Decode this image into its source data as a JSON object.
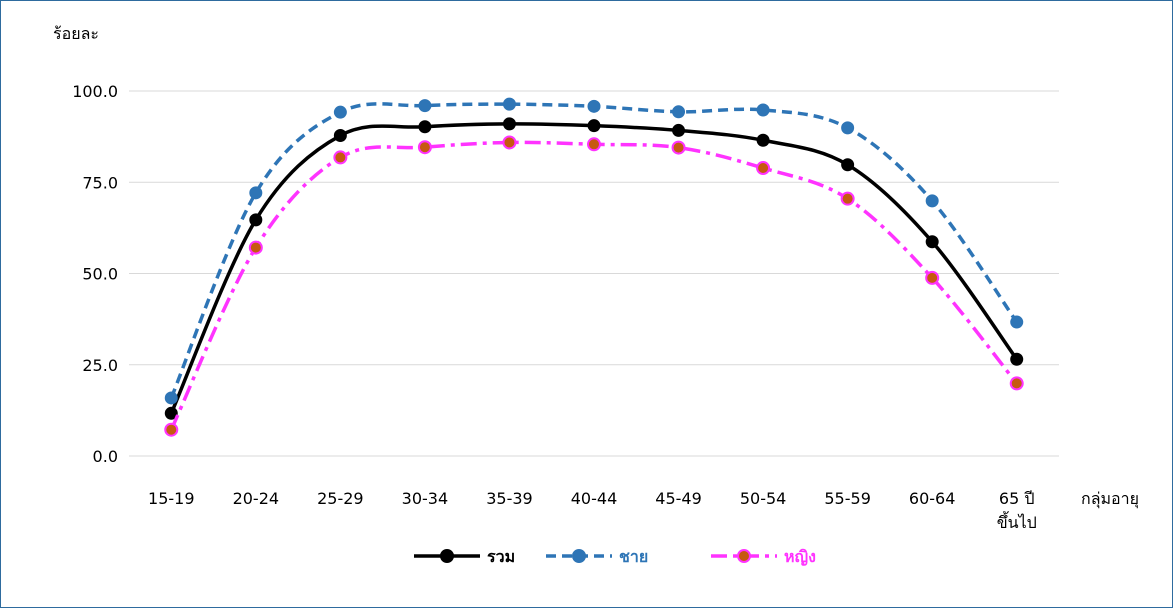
{
  "chart_data": {
    "type": "line",
    "title": "",
    "ylabel": "ร้อยละ",
    "xlabel": "กลุ่มอายุ",
    "ylim": [
      0,
      100
    ],
    "yticks": [
      "0.0",
      "25.0",
      "50.0",
      "75.0",
      "100.0"
    ],
    "grid": true,
    "legend_position": "bottom",
    "categories": [
      "15-19",
      "20-24",
      "25-29",
      "30-34",
      "35-39",
      "40-44",
      "45-49",
      "50-54",
      "55-59",
      "60-64",
      "65 ปี\nขึ้นไป"
    ],
    "series": [
      {
        "name": "รวม",
        "color": "#000000",
        "marker_color": "#000000",
        "dash": "solid",
        "values": [
          11.7,
          64.7,
          87.8,
          90.2,
          91.0,
          90.5,
          89.2,
          86.5,
          79.8,
          58.7,
          26.5
        ]
      },
      {
        "name": "ชาย",
        "color": "#2e75b6",
        "marker_color": "#2e75b6",
        "dash": "dash",
        "values": [
          15.9,
          72.1,
          94.2,
          96.0,
          96.4,
          95.8,
          94.3,
          94.8,
          89.9,
          69.9,
          36.7
        ]
      },
      {
        "name": "หญิง",
        "color": "#ff33ff",
        "marker_color": "#c65911",
        "dash": "dashdot",
        "values": [
          7.2,
          57.1,
          81.8,
          84.6,
          85.9,
          85.4,
          84.5,
          78.9,
          70.5,
          48.8,
          19.9
        ]
      }
    ]
  }
}
